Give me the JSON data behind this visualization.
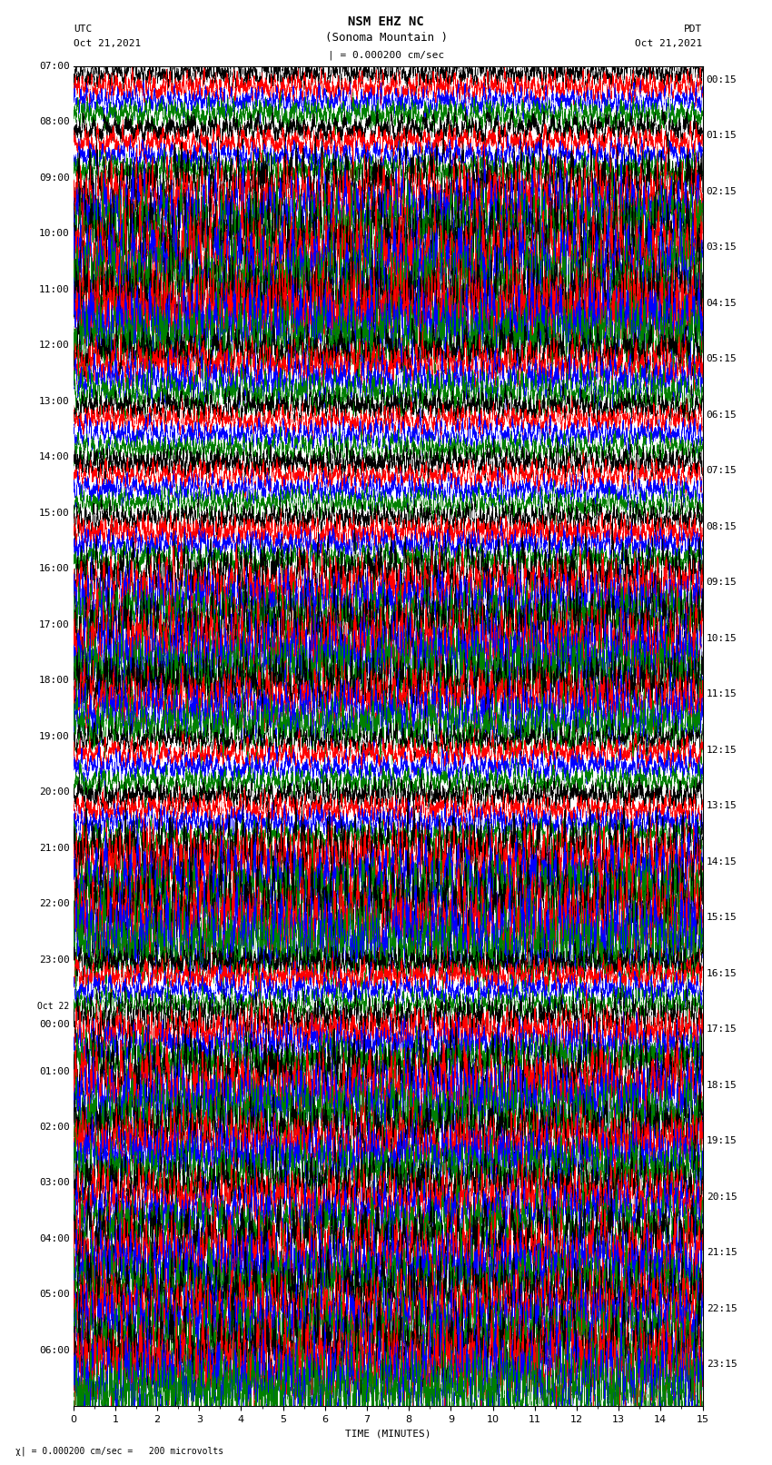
{
  "title_line1": "NSM EHZ NC",
  "title_line2": "(Sonoma Mountain )",
  "title_scale": "| = 0.000200 cm/sec",
  "label_utc": "UTC",
  "label_pdt": "PDT",
  "date_left": "Oct 21,2021",
  "date_right": "Oct 21,2021",
  "xlabel": "TIME (MINUTES)",
  "footer": "| = 0.000200 cm/sec =   200 microvolts",
  "left_times": [
    "07:00",
    "08:00",
    "09:00",
    "10:00",
    "11:00",
    "12:00",
    "13:00",
    "14:00",
    "15:00",
    "16:00",
    "17:00",
    "18:00",
    "19:00",
    "20:00",
    "21:00",
    "22:00",
    "23:00",
    "Oct 22\n00:00",
    "01:00",
    "02:00",
    "03:00",
    "04:00",
    "05:00",
    "06:00"
  ],
  "right_times": [
    "00:15",
    "01:15",
    "02:15",
    "03:15",
    "04:15",
    "05:15",
    "06:15",
    "07:15",
    "08:15",
    "09:15",
    "10:15",
    "11:15",
    "12:15",
    "13:15",
    "14:15",
    "15:15",
    "16:15",
    "17:15",
    "18:15",
    "19:15",
    "20:15",
    "21:15",
    "22:15",
    "23:15"
  ],
  "colors": [
    "black",
    "red",
    "blue",
    "green"
  ],
  "n_rows": 96,
  "minutes": 15,
  "bg_color": "#ffffff",
  "text_color": "#000000",
  "title_fontsize": 9,
  "label_fontsize": 8,
  "tick_fontsize": 8
}
